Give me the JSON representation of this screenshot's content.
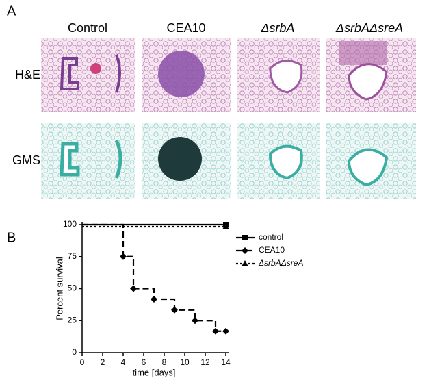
{
  "panels": {
    "a": {
      "label": "A",
      "columns": [
        "Control",
        "CEA10",
        "ΔsrbA",
        "ΔsrbAΔsreA"
      ],
      "rows": [
        "H&E",
        "GMS"
      ]
    },
    "b": {
      "label": "B"
    }
  },
  "chart_data": {
    "type": "line",
    "step": true,
    "xlabel": "time [days]",
    "ylabel": "Percent survival",
    "xlim": [
      0,
      14
    ],
    "xticks": [
      0,
      2,
      4,
      6,
      8,
      10,
      12,
      14
    ],
    "ylim": [
      0,
      100
    ],
    "yticks": [
      0,
      25,
      50,
      75,
      100
    ],
    "legend": "right",
    "series": [
      {
        "name": "control",
        "color": "#000000",
        "dash": "solid",
        "marker": "square",
        "x": [
          0,
          14
        ],
        "values": [
          100,
          100
        ]
      },
      {
        "name": "CEA10",
        "color": "#000000",
        "dash": "dashed",
        "marker": "diamond",
        "x": [
          0,
          4,
          5,
          7,
          9,
          11,
          13,
          14
        ],
        "values": [
          100,
          75,
          50,
          41.7,
          33.3,
          25,
          16.7,
          16.7
        ]
      },
      {
        "name": "ΔsrbAΔsreA",
        "color": "#000000",
        "dash": "dotted",
        "marker": "triangle",
        "x": [
          0,
          14
        ],
        "values": [
          100,
          100
        ]
      }
    ]
  }
}
